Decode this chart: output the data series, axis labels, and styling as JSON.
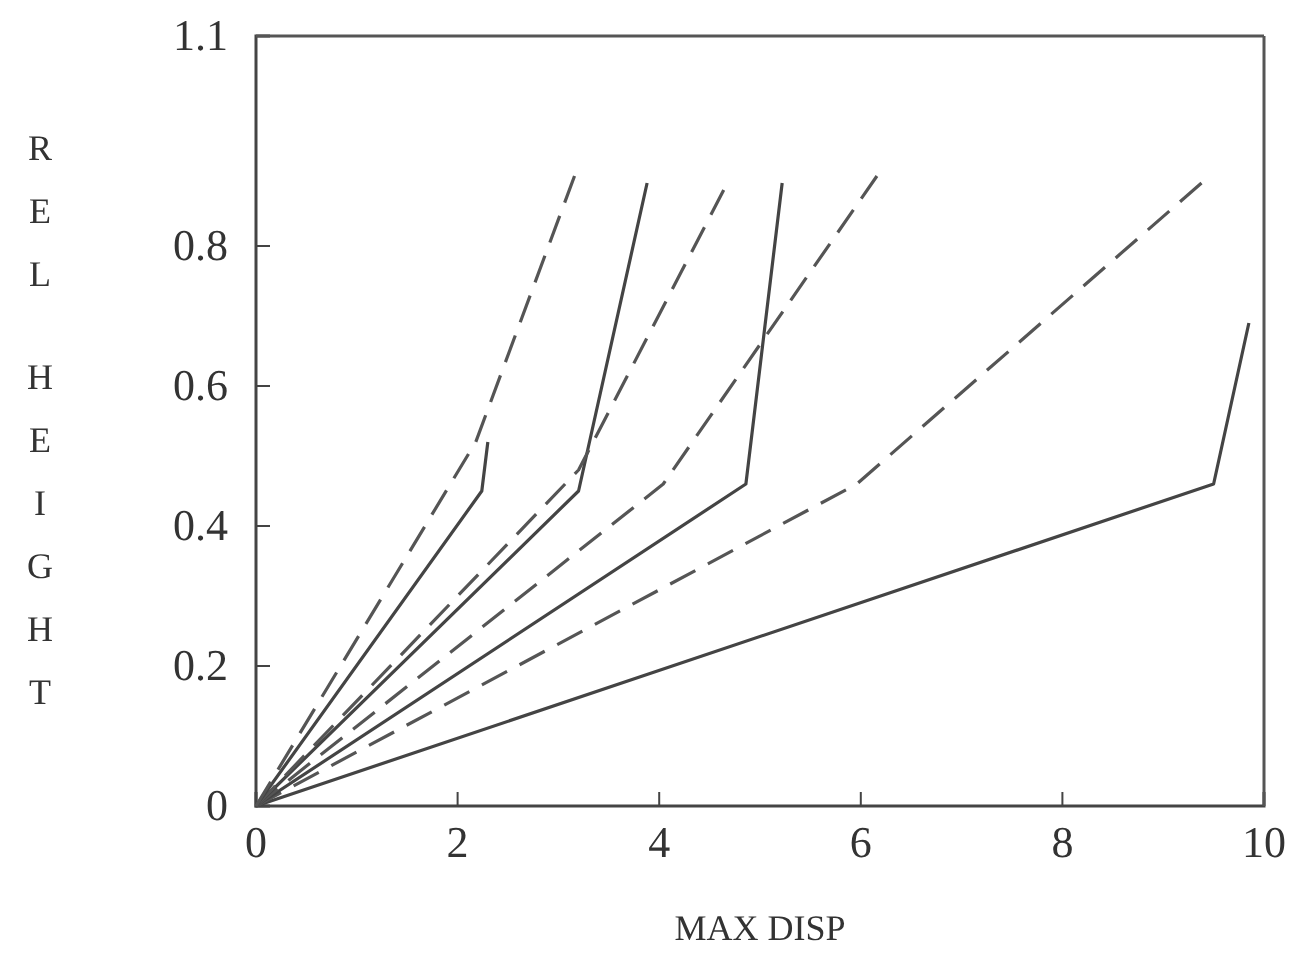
{
  "chart_data": {
    "type": "line",
    "xlabel": "MAX DISP",
    "ylabel": "REL HEIGHT",
    "xlim": [
      0,
      10
    ],
    "xticks": [
      0,
      2,
      4,
      6,
      8,
      10
    ],
    "ylim": [
      0,
      1.1
    ],
    "yticks": [
      0,
      0.2,
      0.4,
      0.6,
      0.8,
      1.1
    ],
    "grid": false,
    "marker": "none",
    "series": [
      {
        "color": "#444444",
        "line_style": "solid",
        "x": [
          0,
          9.5,
          9.85
        ],
        "values": [
          0,
          0.46,
          0.69
        ]
      },
      {
        "color": "#555555",
        "line_style": "dashed",
        "x": [
          0,
          5.96,
          9.38
        ],
        "values": [
          0,
          0.46,
          0.89
        ]
      },
      {
        "color": "#444444",
        "line_style": "solid",
        "x": [
          0,
          4.86,
          5.22
        ],
        "values": [
          0,
          0.46,
          0.89
        ]
      },
      {
        "color": "#555555",
        "line_style": "dashed",
        "x": [
          0,
          4.04,
          6.16
        ],
        "values": [
          0,
          0.46,
          0.9
        ]
      },
      {
        "color": "#444444",
        "line_style": "solid",
        "x": [
          0,
          3.2,
          3.88
        ],
        "values": [
          0,
          0.45,
          0.89
        ]
      },
      {
        "color": "#555555",
        "line_style": "dashed",
        "x": [
          0,
          3.2,
          4.64
        ],
        "values": [
          0,
          0.48,
          0.88
        ]
      },
      {
        "color": "#444444",
        "line_style": "solid",
        "x": [
          0,
          2.24,
          2.3
        ],
        "values": [
          0,
          0.45,
          0.52
        ]
      },
      {
        "color": "#555555",
        "line_style": "dashed",
        "x": [
          0,
          2.18,
          3.16
        ],
        "values": [
          0,
          0.52,
          0.9
        ]
      }
    ]
  }
}
